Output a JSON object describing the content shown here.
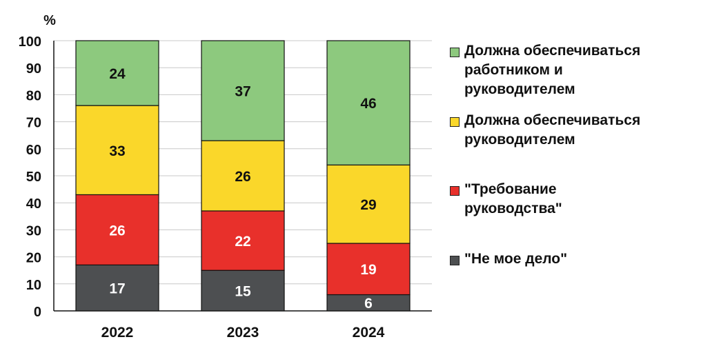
{
  "chart_data": {
    "type": "bar",
    "stacked": true,
    "ylabel": "%",
    "ylim": [
      0,
      100
    ],
    "yticks": [
      0,
      10,
      20,
      30,
      40,
      50,
      60,
      70,
      80,
      90,
      100
    ],
    "categories": [
      "2022",
      "2023",
      "2024"
    ],
    "grid": true,
    "legend_position": "right",
    "series": [
      {
        "name": "\"Не мое дело\"",
        "color": "#4d4f51",
        "label_color": "#ffffff",
        "values": [
          17,
          15,
          6
        ]
      },
      {
        "name": "\"Требование руководства\"",
        "color": "#e8302b",
        "label_color": "#ffffff",
        "values": [
          26,
          22,
          19
        ]
      },
      {
        "name": "Должна обеспечиваться руководителем",
        "color": "#fad72a",
        "label_color": "#111111",
        "values": [
          33,
          26,
          29
        ]
      },
      {
        "name": "Должна обеспечиваться работником и руководителем",
        "color": "#8dc97e",
        "label_color": "#111111",
        "values": [
          24,
          37,
          46
        ]
      }
    ]
  },
  "legend": {
    "items": [
      {
        "label": "Должна обеспечиваться\nработником и\nруководителем",
        "color": "#8dc97e"
      },
      {
        "label": "Должна обеспечиваться\nруководителем",
        "color": "#fad72a"
      },
      {
        "label": "\"Требование\nруководства\"",
        "color": "#e8302b"
      },
      {
        "label": "\"Не мое дело\"",
        "color": "#4d4f51"
      }
    ]
  }
}
